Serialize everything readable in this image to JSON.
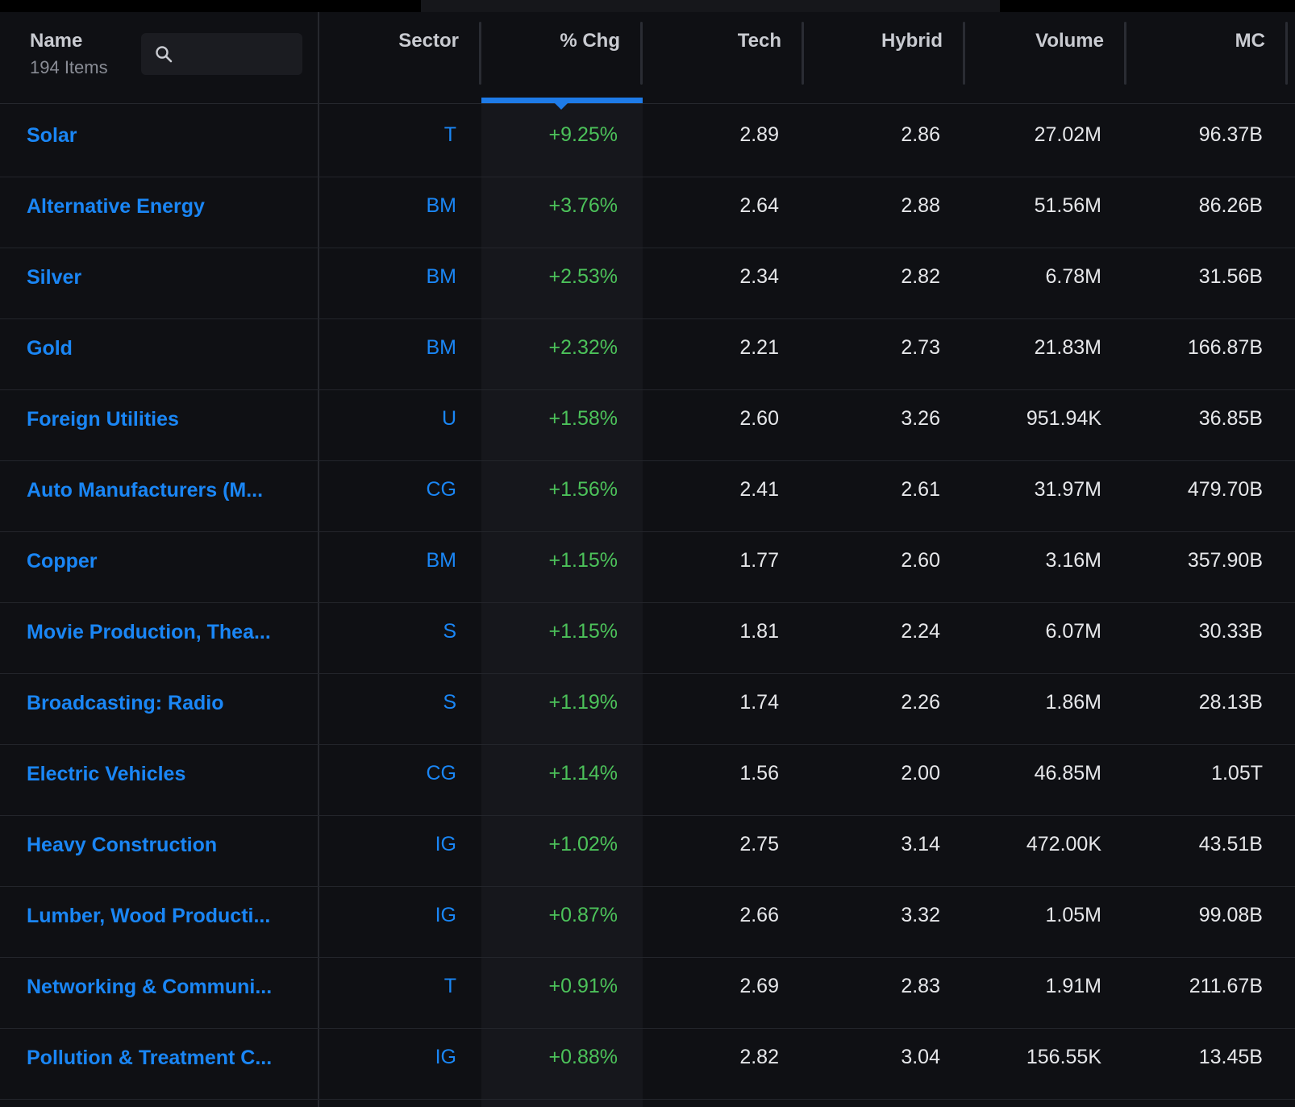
{
  "header": {
    "name_label": "Name",
    "item_count": "194 Items",
    "search_placeholder": "",
    "columns": [
      "Sector",
      "% Chg",
      "Tech",
      "Hybrid",
      "Volume",
      "MC"
    ],
    "sorted_column": "% Chg"
  },
  "colors": {
    "background": "#0f1014",
    "link": "#1a86f5",
    "positive": "#4cc25a",
    "sort_indicator": "#1e7be8"
  },
  "rows": [
    {
      "name": "Solar",
      "sector": "T",
      "chg": "+9.25%",
      "tech": "2.89",
      "hybrid": "2.86",
      "volume": "27.02M",
      "mc": "96.37B"
    },
    {
      "name": "Alternative Energy",
      "sector": "BM",
      "chg": "+3.76%",
      "tech": "2.64",
      "hybrid": "2.88",
      "volume": "51.56M",
      "mc": "86.26B"
    },
    {
      "name": "Silver",
      "sector": "BM",
      "chg": "+2.53%",
      "tech": "2.34",
      "hybrid": "2.82",
      "volume": "6.78M",
      "mc": "31.56B"
    },
    {
      "name": "Gold",
      "sector": "BM",
      "chg": "+2.32%",
      "tech": "2.21",
      "hybrid": "2.73",
      "volume": "21.83M",
      "mc": "166.87B"
    },
    {
      "name": "Foreign Utilities",
      "sector": "U",
      "chg": "+1.58%",
      "tech": "2.60",
      "hybrid": "3.26",
      "volume": "951.94K",
      "mc": "36.85B"
    },
    {
      "name": "Auto Manufacturers (M...",
      "sector": "CG",
      "chg": "+1.56%",
      "tech": "2.41",
      "hybrid": "2.61",
      "volume": "31.97M",
      "mc": "479.70B"
    },
    {
      "name": "Copper",
      "sector": "BM",
      "chg": "+1.15%",
      "tech": "1.77",
      "hybrid": "2.60",
      "volume": "3.16M",
      "mc": "357.90B"
    },
    {
      "name": "Movie Production, Thea...",
      "sector": "S",
      "chg": "+1.15%",
      "tech": "1.81",
      "hybrid": "2.24",
      "volume": "6.07M",
      "mc": "30.33B"
    },
    {
      "name": "Broadcasting: Radio",
      "sector": "S",
      "chg": "+1.19%",
      "tech": "1.74",
      "hybrid": "2.26",
      "volume": "1.86M",
      "mc": "28.13B"
    },
    {
      "name": "Electric Vehicles",
      "sector": "CG",
      "chg": "+1.14%",
      "tech": "1.56",
      "hybrid": "2.00",
      "volume": "46.85M",
      "mc": "1.05T"
    },
    {
      "name": "Heavy Construction",
      "sector": "IG",
      "chg": "+1.02%",
      "tech": "2.75",
      "hybrid": "3.14",
      "volume": "472.00K",
      "mc": "43.51B"
    },
    {
      "name": "Lumber, Wood Producti...",
      "sector": "IG",
      "chg": "+0.87%",
      "tech": "2.66",
      "hybrid": "3.32",
      "volume": "1.05M",
      "mc": "99.08B"
    },
    {
      "name": "Networking & Communi...",
      "sector": "T",
      "chg": "+0.91%",
      "tech": "2.69",
      "hybrid": "2.83",
      "volume": "1.91M",
      "mc": "211.67B"
    },
    {
      "name": "Pollution & Treatment C...",
      "sector": "IG",
      "chg": "+0.88%",
      "tech": "2.82",
      "hybrid": "3.04",
      "volume": "156.55K",
      "mc": "13.45B"
    }
  ]
}
